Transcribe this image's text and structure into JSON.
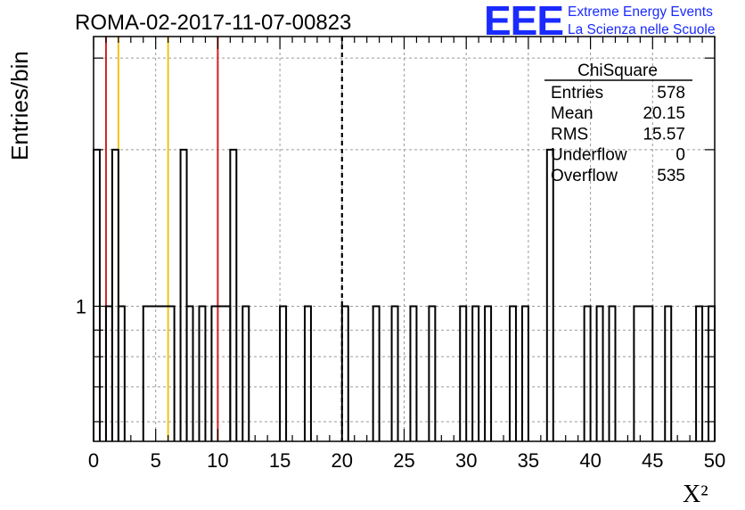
{
  "chart_data": {
    "type": "histogram",
    "title": "ROMA-02-2017-11-07-00823",
    "xlabel": "X²",
    "ylabel": "Entries/bin",
    "xlim": [
      0,
      50
    ],
    "ylim": [
      0.55,
      3.3
    ],
    "yscale": "log",
    "grid": true,
    "bin_width": 0.5,
    "x_ticks": [
      0,
      5,
      10,
      15,
      20,
      25,
      30,
      35,
      40,
      45,
      50
    ],
    "y_tick_labels": [
      {
        "value": 1,
        "label": "1"
      }
    ],
    "bins": [
      {
        "x0": 0.0,
        "x1": 0.5,
        "count": 2
      },
      {
        "x0": 0.5,
        "x1": 1.0,
        "count": 0
      },
      {
        "x0": 1.0,
        "x1": 1.5,
        "count": 1
      },
      {
        "x0": 1.5,
        "x1": 2.0,
        "count": 2
      },
      {
        "x0": 2.0,
        "x1": 2.5,
        "count": 1
      },
      {
        "x0": 4.0,
        "x1": 6.5,
        "count": 1
      },
      {
        "x0": 7.0,
        "x1": 7.5,
        "count": 2
      },
      {
        "x0": 7.5,
        "x1": 8.0,
        "count": 1
      },
      {
        "x0": 8.5,
        "x1": 9.0,
        "count": 1
      },
      {
        "x0": 9.5,
        "x1": 11.0,
        "count": 1
      },
      {
        "x0": 11.0,
        "x1": 11.5,
        "count": 2
      },
      {
        "x0": 12.0,
        "x1": 12.5,
        "count": 1
      },
      {
        "x0": 15.0,
        "x1": 15.5,
        "count": 1
      },
      {
        "x0": 17.0,
        "x1": 17.5,
        "count": 1
      },
      {
        "x0": 20.0,
        "x1": 20.5,
        "count": 1
      },
      {
        "x0": 22.5,
        "x1": 23.0,
        "count": 1
      },
      {
        "x0": 24.0,
        "x1": 24.5,
        "count": 1
      },
      {
        "x0": 25.5,
        "x1": 26.0,
        "count": 1
      },
      {
        "x0": 27.0,
        "x1": 27.5,
        "count": 1
      },
      {
        "x0": 29.5,
        "x1": 30.0,
        "count": 1
      },
      {
        "x0": 30.5,
        "x1": 31.0,
        "count": 1
      },
      {
        "x0": 31.5,
        "x1": 32.0,
        "count": 1
      },
      {
        "x0": 33.5,
        "x1": 34.0,
        "count": 1
      },
      {
        "x0": 34.5,
        "x1": 35.0,
        "count": 1
      },
      {
        "x0": 36.5,
        "x1": 37.0,
        "count": 2
      },
      {
        "x0": 39.5,
        "x1": 40.0,
        "count": 1
      },
      {
        "x0": 40.5,
        "x1": 41.0,
        "count": 1
      },
      {
        "x0": 41.5,
        "x1": 42.0,
        "count": 1
      },
      {
        "x0": 43.5,
        "x1": 45.0,
        "count": 1
      },
      {
        "x0": 46.0,
        "x1": 46.5,
        "count": 1
      },
      {
        "x0": 48.5,
        "x1": 49.0,
        "count": 1
      },
      {
        "x0": 49.5,
        "x1": 50.0,
        "count": 1
      }
    ],
    "vertical_lines": [
      {
        "x": 1,
        "color": "#d42020",
        "style": "solid"
      },
      {
        "x": 2,
        "color": "#f2c31a",
        "style": "solid"
      },
      {
        "x": 6,
        "color": "#f2c31a",
        "style": "solid"
      },
      {
        "x": 10,
        "color": "#d42020",
        "style": "solid"
      },
      {
        "x": 20,
        "color": "#000000",
        "style": "dashed"
      }
    ],
    "stats_box": {
      "title": "ChiSquare",
      "rows": [
        {
          "label": "Entries",
          "value": "578"
        },
        {
          "label": "Mean",
          "value": "20.15"
        },
        {
          "label": "RMS",
          "value": "15.57"
        },
        {
          "label": "Underflow",
          "value": "0"
        },
        {
          "label": "Overflow",
          "value": "535"
        }
      ]
    }
  },
  "logo": {
    "mark": "EEE",
    "line1": "Extreme Energy Events",
    "line2": "La Scienza nelle Scuole",
    "color": "#1a2bff"
  }
}
